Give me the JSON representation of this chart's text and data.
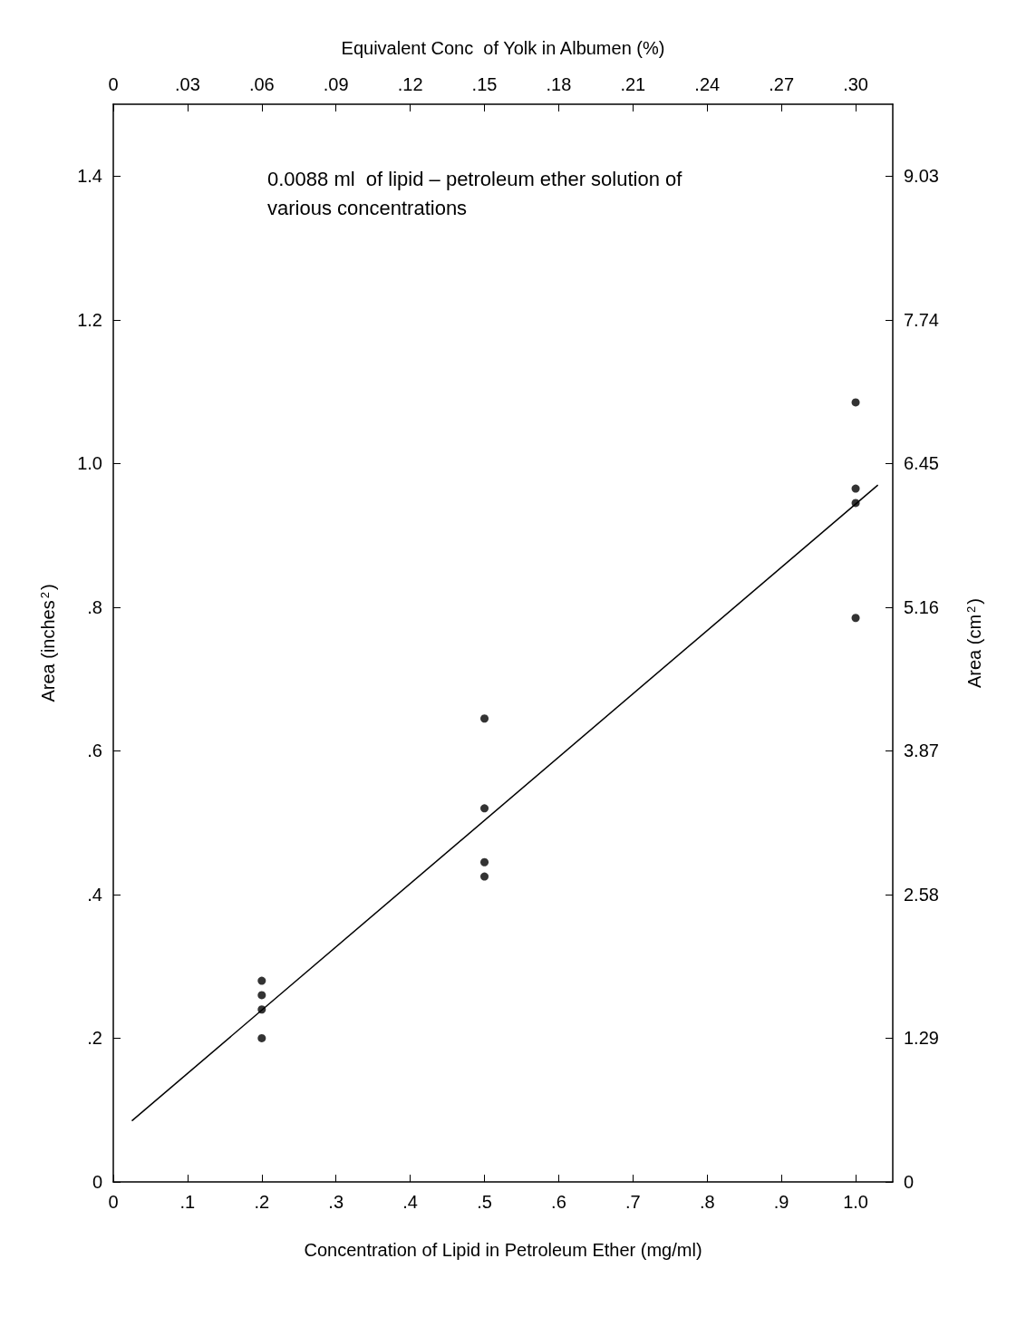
{
  "chart_data": {
    "type": "scatter",
    "xlabel": "Concentration of Lipid in Petroleum Ether (mg/ml)",
    "ylabel": "Area (inches$^{2}$)",
    "y2label": "Area (cm$^{2}$)",
    "x2label": "Equivalent Conc  of Yolk in Albumen (%)",
    "annotations": [
      "0.0088 ml  of lipid – petroleum ether solution of various concentrations"
    ],
    "xlim": [
      0,
      1.05
    ],
    "xticks": [
      0,
      {
        "value": 0.1,
        "label": ".1"
      },
      {
        "value": 0.2,
        "label": ".2"
      },
      {
        "value": 0.3,
        "label": ".3"
      },
      {
        "value": 0.4,
        "label": ".4"
      },
      {
        "value": 0.5,
        "label": ".5"
      },
      {
        "value": 0.6,
        "label": ".6"
      },
      {
        "value": 0.7,
        "label": ".7"
      },
      {
        "value": 0.8,
        "label": ".8"
      },
      {
        "value": 0.9,
        "label": ".9"
      },
      {
        "value": 1.0,
        "label": "1.0"
      }
    ],
    "x2lim": [
      0,
      0.315
    ],
    "x2ticks": [
      0,
      {
        "value": 0.03,
        "label": ".03"
      },
      {
        "value": 0.06,
        "label": ".06"
      },
      {
        "value": 0.09,
        "label": ".09"
      },
      {
        "value": 0.12,
        "label": ".12"
      },
      {
        "value": 0.15,
        "label": ".15"
      },
      {
        "value": 0.18,
        "label": ".18"
      },
      {
        "value": 0.21,
        "label": ".21"
      },
      {
        "value": 0.24,
        "label": ".24"
      },
      {
        "value": 0.27,
        "label": ".27"
      },
      {
        "value": 0.3,
        "label": ".30"
      }
    ],
    "ylim": [
      0,
      1.5
    ],
    "yticks": [
      0,
      {
        "value": 0.2,
        "label": ".2"
      },
      {
        "value": 0.4,
        "label": ".4"
      },
      {
        "value": 0.6,
        "label": ".6"
      },
      {
        "value": 0.8,
        "label": ".8"
      },
      {
        "value": 1.0,
        "label": "1.0"
      },
      {
        "value": 1.2,
        "label": "1.2"
      },
      {
        "value": 1.4,
        "label": "1.4"
      }
    ],
    "y2lim": [
      0,
      9.675
    ],
    "y2ticks": [
      0,
      1.29,
      2.58,
      3.87,
      5.16,
      6.45,
      7.74,
      9.03
    ],
    "grid": false,
    "marker": "circle",
    "series": [
      {
        "type": "scatter",
        "color": "#000000",
        "x": [
          0.2,
          0.2,
          0.2,
          0.2,
          0.5,
          0.5,
          0.5,
          0.5,
          1.0,
          1.0,
          1.0,
          1.0
        ],
        "values": [
          0.28,
          0.26,
          0.24,
          0.2,
          0.645,
          0.52,
          0.445,
          0.425,
          1.085,
          0.965,
          0.945,
          0.785
        ]
      },
      {
        "type": "line",
        "color": "#000000",
        "marker": "none",
        "line_style": "solid",
        "x": [
          0.025,
          1.03
        ],
        "values": [
          0.085,
          0.97
        ]
      }
    ]
  }
}
